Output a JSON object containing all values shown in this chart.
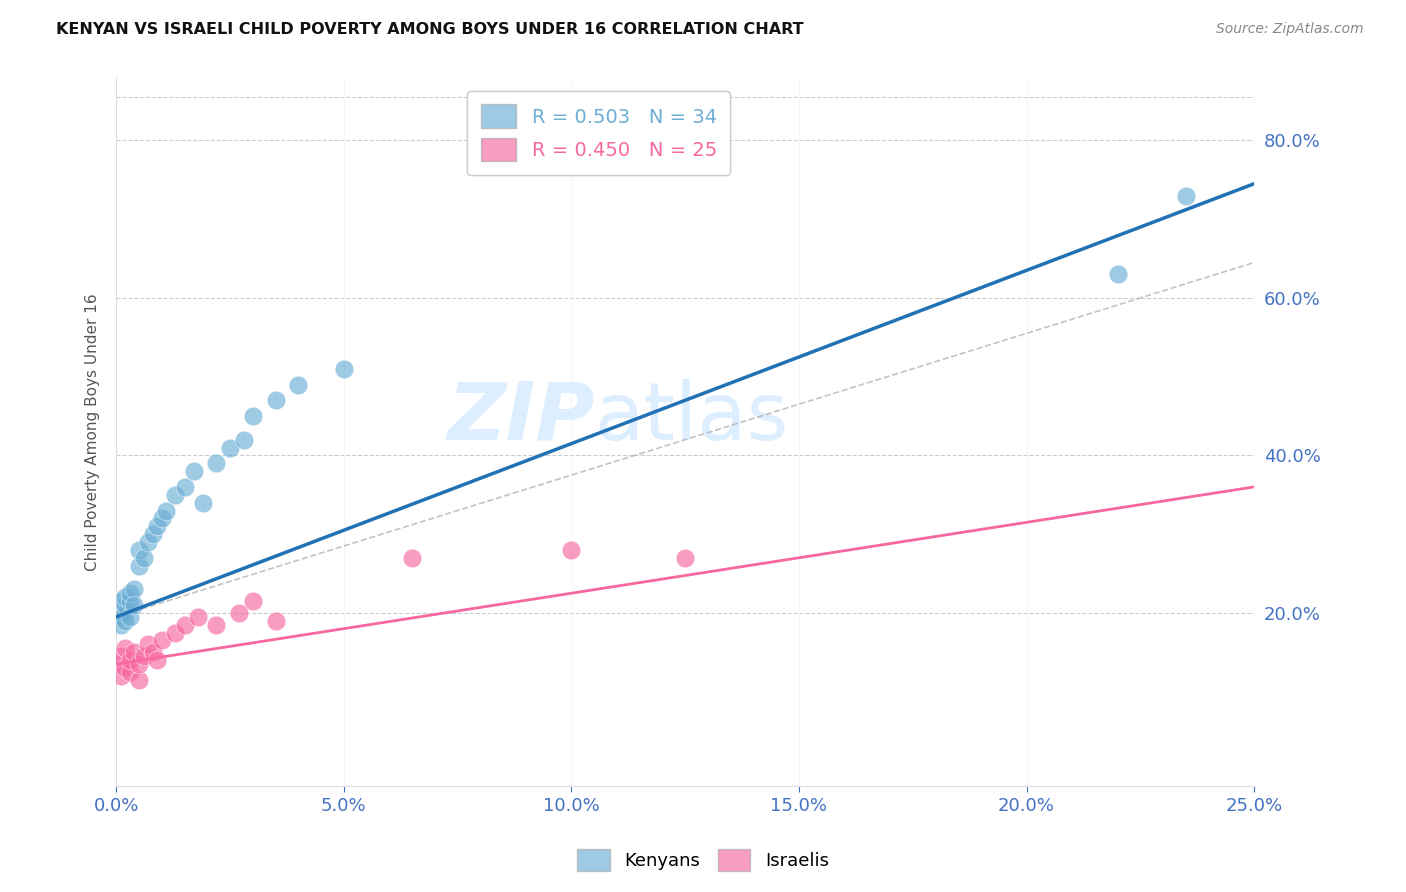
{
  "title": "KENYAN VS ISRAELI CHILD POVERTY AMONG BOYS UNDER 16 CORRELATION CHART",
  "source": "Source: ZipAtlas.com",
  "ylabel": "Child Poverty Among Boys Under 16",
  "xlim": [
    0.0,
    0.25
  ],
  "ylim": [
    -0.02,
    0.88
  ],
  "xticks": [
    0.0,
    0.05,
    0.1,
    0.15,
    0.2,
    0.25
  ],
  "yticks": [
    0.2,
    0.4,
    0.6,
    0.8
  ],
  "ytick_labels": [
    "20.0%",
    "40.0%",
    "60.0%",
    "80.0%"
  ],
  "xtick_labels": [
    "0.0%",
    "5.0%",
    "10.0%",
    "15.0%",
    "20.0%",
    "25.0%"
  ],
  "legend_entries": [
    {
      "label": "R = 0.503   N = 34",
      "color": "#6baed6"
    },
    {
      "label": "R = 0.450   N = 25",
      "color": "#f768a1"
    }
  ],
  "kenyan_x": [
    0.0,
    0.001,
    0.001,
    0.001,
    0.002,
    0.002,
    0.002,
    0.002,
    0.003,
    0.003,
    0.003,
    0.004,
    0.004,
    0.005,
    0.005,
    0.006,
    0.007,
    0.008,
    0.009,
    0.01,
    0.011,
    0.013,
    0.015,
    0.017,
    0.019,
    0.022,
    0.025,
    0.028,
    0.03,
    0.035,
    0.04,
    0.05,
    0.22,
    0.235
  ],
  "kenyan_y": [
    0.205,
    0.195,
    0.185,
    0.215,
    0.2,
    0.21,
    0.22,
    0.19,
    0.195,
    0.215,
    0.225,
    0.23,
    0.21,
    0.26,
    0.28,
    0.27,
    0.29,
    0.3,
    0.31,
    0.32,
    0.33,
    0.35,
    0.36,
    0.38,
    0.34,
    0.39,
    0.41,
    0.42,
    0.45,
    0.47,
    0.49,
    0.51,
    0.63,
    0.73
  ],
  "israeli_x": [
    0.0,
    0.001,
    0.001,
    0.002,
    0.002,
    0.003,
    0.003,
    0.004,
    0.005,
    0.005,
    0.006,
    0.007,
    0.008,
    0.009,
    0.01,
    0.013,
    0.015,
    0.018,
    0.022,
    0.027,
    0.03,
    0.035,
    0.065,
    0.1,
    0.125
  ],
  "israeli_y": [
    0.135,
    0.12,
    0.145,
    0.13,
    0.155,
    0.125,
    0.14,
    0.15,
    0.115,
    0.135,
    0.145,
    0.16,
    0.15,
    0.14,
    0.165,
    0.175,
    0.185,
    0.195,
    0.185,
    0.2,
    0.215,
    0.19,
    0.27,
    0.28,
    0.27
  ],
  "kenyan_color": "#6baed6",
  "israeli_color": "#f768a1",
  "kenyan_line_color": "#2171b5",
  "israeli_line_color": "#f768a1",
  "background_color": "#ffffff",
  "grid_color": "#cccccc",
  "axis_color": "#4472c4",
  "title_color": "#111111",
  "source_color": "#888888",
  "watermark_zip": "ZIP",
  "watermark_atlas": "atlas",
  "watermark_color": "#ddeeff",
  "kenyan_slope": 2.2,
  "kenyan_intercept": 0.195,
  "israeli_slope": 0.9,
  "israeli_intercept": 0.135,
  "israeli_dashed_slope": 1.8,
  "israeli_dashed_intercept": 0.195
}
